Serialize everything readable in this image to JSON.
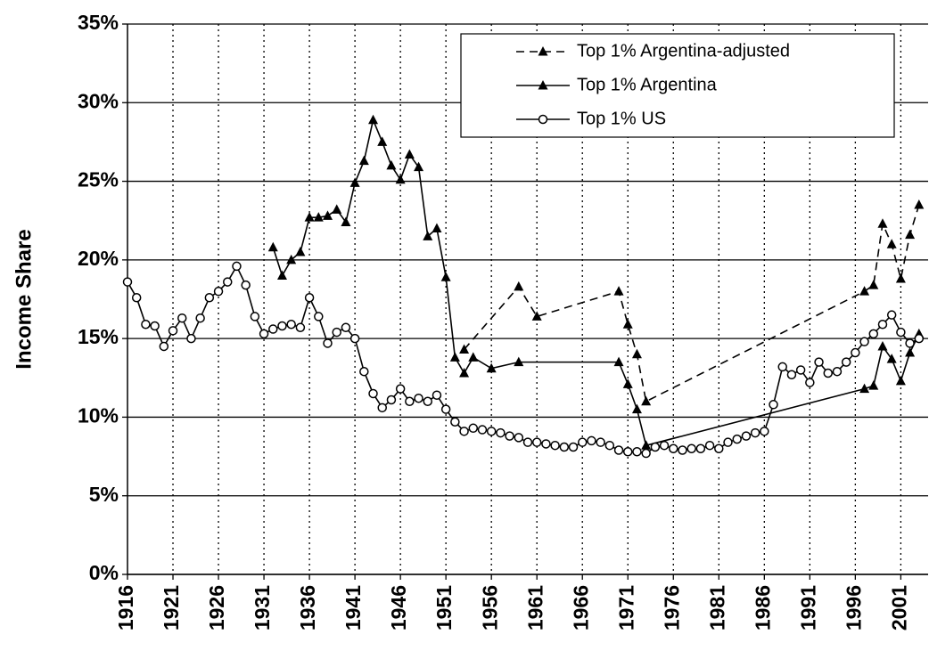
{
  "chart_data": {
    "type": "line",
    "y_label": "Income Share",
    "xlim": [
      1916,
      2004
    ],
    "xticks": [
      1916,
      1921,
      1926,
      1931,
      1936,
      1941,
      1946,
      1951,
      1956,
      1961,
      1966,
      1971,
      1976,
      1981,
      1986,
      1991,
      1996,
      2001
    ],
    "ylim": [
      0,
      35
    ],
    "yticks": [
      {
        "value": 0,
        "label": "0%"
      },
      {
        "value": 5,
        "label": "5%"
      },
      {
        "value": 10,
        "label": "10%"
      },
      {
        "value": 15,
        "label": "15%"
      },
      {
        "value": 20,
        "label": "20%"
      },
      {
        "value": 25,
        "label": "25%"
      },
      {
        "value": 30,
        "label": "30%"
      },
      {
        "value": 35,
        "label": "35%"
      }
    ],
    "grid": true,
    "legend_position": "upper right",
    "series": [
      {
        "name": "Top 1% Argentina-adjusted",
        "color": "#000000",
        "dash": true,
        "marker": "triangle",
        "x": [
          1953,
          1959,
          1961,
          1970,
          1971,
          1972,
          1973,
          1997,
          1998,
          1999,
          2000,
          2001,
          2002,
          2003
        ],
        "values": [
          14.3,
          18.3,
          16.4,
          18.0,
          15.9,
          14.0,
          11.0,
          18.0,
          18.4,
          22.3,
          21.0,
          18.8,
          21.6,
          23.5
        ]
      },
      {
        "name": "Top 1% Argentina",
        "color": "#000000",
        "dash": false,
        "marker": "triangle",
        "x": [
          1932,
          1933,
          1934,
          1935,
          1936,
          1937,
          1938,
          1939,
          1940,
          1941,
          1942,
          1943,
          1944,
          1945,
          1946,
          1947,
          1948,
          1949,
          1950,
          1951,
          1952,
          1953,
          1954,
          1956,
          1959,
          1970,
          1971,
          1972,
          1973,
          1997,
          1998,
          1999,
          2000,
          2001,
          2002,
          2003
        ],
        "values": [
          20.8,
          19.0,
          20.0,
          20.5,
          22.7,
          22.7,
          22.8,
          23.2,
          22.4,
          24.9,
          26.3,
          28.9,
          27.5,
          26.0,
          25.1,
          26.7,
          25.9,
          21.5,
          22.0,
          18.9,
          13.8,
          12.8,
          13.8,
          13.1,
          13.5,
          13.5,
          12.1,
          10.5,
          8.2,
          11.8,
          12.0,
          14.5,
          13.7,
          12.3,
          14.1,
          15.3
        ]
      },
      {
        "name": "Top 1% US",
        "color": "#000000",
        "dash": false,
        "marker": "circle",
        "x": [
          1916,
          1917,
          1918,
          1919,
          1920,
          1921,
          1922,
          1923,
          1924,
          1925,
          1926,
          1927,
          1928,
          1929,
          1930,
          1931,
          1932,
          1933,
          1934,
          1935,
          1936,
          1937,
          1938,
          1939,
          1940,
          1941,
          1942,
          1943,
          1944,
          1945,
          1946,
          1947,
          1948,
          1949,
          1950,
          1951,
          1952,
          1953,
          1954,
          1955,
          1956,
          1957,
          1958,
          1959,
          1960,
          1961,
          1962,
          1963,
          1964,
          1965,
          1966,
          1967,
          1968,
          1969,
          1970,
          1971,
          1972,
          1973,
          1974,
          1975,
          1976,
          1977,
          1978,
          1979,
          1980,
          1981,
          1982,
          1983,
          1984,
          1985,
          1986,
          1987,
          1988,
          1989,
          1990,
          1991,
          1992,
          1993,
          1994,
          1995,
          1996,
          1997,
          1998,
          1999,
          2000,
          2001,
          2002,
          2003
        ],
        "values": [
          18.6,
          17.6,
          15.9,
          15.8,
          14.5,
          15.5,
          16.3,
          15.0,
          16.3,
          17.6,
          18.0,
          18.6,
          19.6,
          18.4,
          16.4,
          15.3,
          15.6,
          15.8,
          15.9,
          15.7,
          17.6,
          16.4,
          14.7,
          15.4,
          15.7,
          15.0,
          12.9,
          11.5,
          10.6,
          11.1,
          11.8,
          11.0,
          11.2,
          11.0,
          11.4,
          10.5,
          9.7,
          9.1,
          9.3,
          9.2,
          9.1,
          9.0,
          8.8,
          8.7,
          8.4,
          8.4,
          8.3,
          8.2,
          8.1,
          8.1,
          8.4,
          8.5,
          8.4,
          8.2,
          7.9,
          7.8,
          7.8,
          7.7,
          8.1,
          8.2,
          8.0,
          7.9,
          8.0,
          8.0,
          8.2,
          8.0,
          8.4,
          8.6,
          8.8,
          9.0,
          9.1,
          10.8,
          13.2,
          12.7,
          13.0,
          12.2,
          13.5,
          12.8,
          12.9,
          13.5,
          14.1,
          14.8,
          15.3,
          15.9,
          16.5,
          15.4,
          14.7,
          15.0
        ]
      }
    ]
  }
}
